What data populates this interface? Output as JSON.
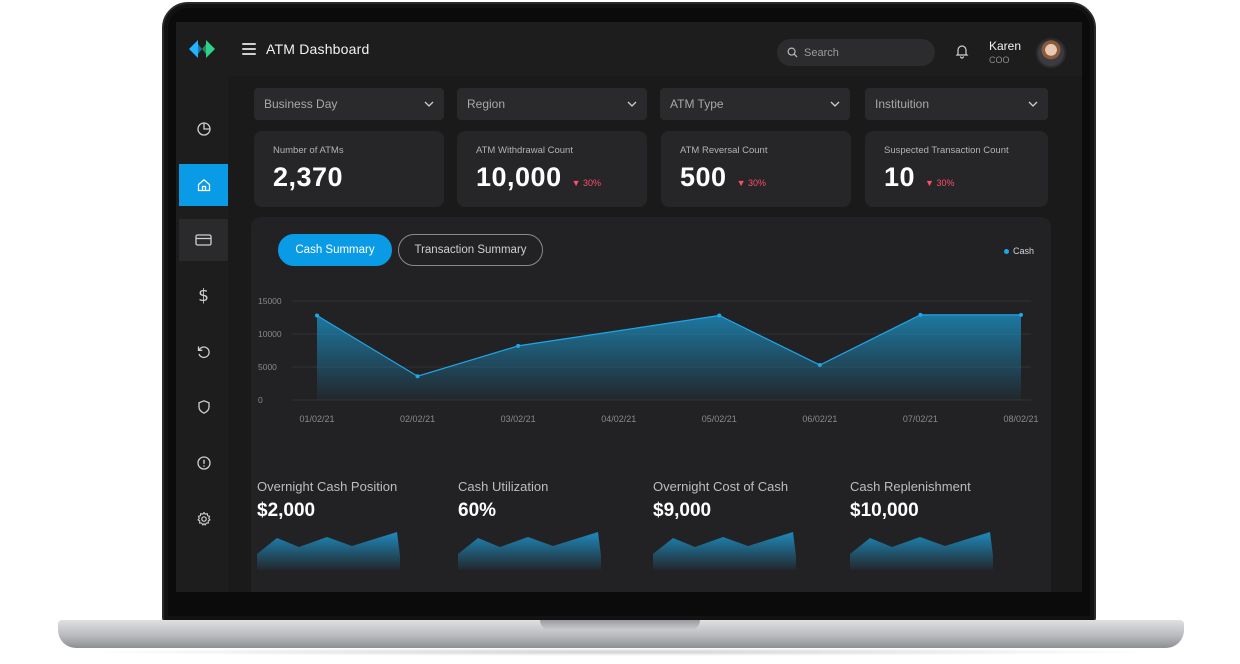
{
  "app": {
    "title": "ATM Dashboard"
  },
  "search": {
    "placeholder": "Search"
  },
  "user": {
    "name": "Karen",
    "role": "COO"
  },
  "sidebar": {
    "items": [
      {
        "name": "analytics",
        "icon": "pie-chart-icon"
      },
      {
        "name": "home",
        "icon": "home-icon",
        "active": true
      },
      {
        "name": "cards",
        "icon": "credit-card-icon"
      },
      {
        "name": "cash",
        "icon": "dollar-icon"
      },
      {
        "name": "reversals",
        "icon": "refresh-icon"
      },
      {
        "name": "security",
        "icon": "shield-icon"
      },
      {
        "name": "alerts",
        "icon": "alert-circle-icon"
      },
      {
        "name": "settings",
        "icon": "gear-icon"
      }
    ]
  },
  "filters": [
    {
      "label": "Business Day"
    },
    {
      "label": "Region"
    },
    {
      "label": "ATM Type"
    },
    {
      "label": "Instituition"
    }
  ],
  "kpis": [
    {
      "label": "Number of ATMs",
      "value": "2,370",
      "delta": ""
    },
    {
      "label": "ATM Withdrawal Count",
      "value": "10,000",
      "delta": "▼ 30%"
    },
    {
      "label": "ATM Reversal Count",
      "value": "500",
      "delta": "▼ 30%"
    },
    {
      "label": "Suspected Transaction Count",
      "value": "10",
      "delta": "▼ 30%"
    }
  ],
  "tabs": {
    "active": "Cash Summary",
    "inactive": "Transaction Summary"
  },
  "legend": {
    "label": "Cash"
  },
  "colors": {
    "accent": "#0a9be6",
    "negative": "#ff4d6a",
    "series": "#20a5e6"
  },
  "chart_data": {
    "type": "area",
    "x": [
      "01/02/21",
      "02/02/21",
      "03/02/21",
      "04/02/21",
      "05/02/21",
      "06/02/21",
      "07/02/21",
      "08/02/21"
    ],
    "series": [
      {
        "name": "Cash",
        "points": [
          [
            "01/02/21",
            12800
          ],
          [
            "02/02/21",
            3600
          ],
          [
            "03/02/21",
            8200
          ],
          [
            "05/02/21",
            12800
          ],
          [
            "06/02/21",
            5300
          ],
          [
            "07/02/21",
            12900
          ],
          [
            "08/02/21",
            12900
          ]
        ]
      }
    ],
    "yticks": [
      15000,
      10000,
      5000,
      0
    ],
    "ylim": [
      0,
      15000
    ],
    "grid": true,
    "legend_position": "top-right"
  },
  "metrics": [
    {
      "label": "Overnight Cash Position",
      "value": "$2,000"
    },
    {
      "label": "Cash Utilization",
      "value": "60%"
    },
    {
      "label": "Overnight Cost of Cash",
      "value": "$9,000"
    },
    {
      "label": "Cash Replenishment",
      "value": "$10,000"
    }
  ]
}
